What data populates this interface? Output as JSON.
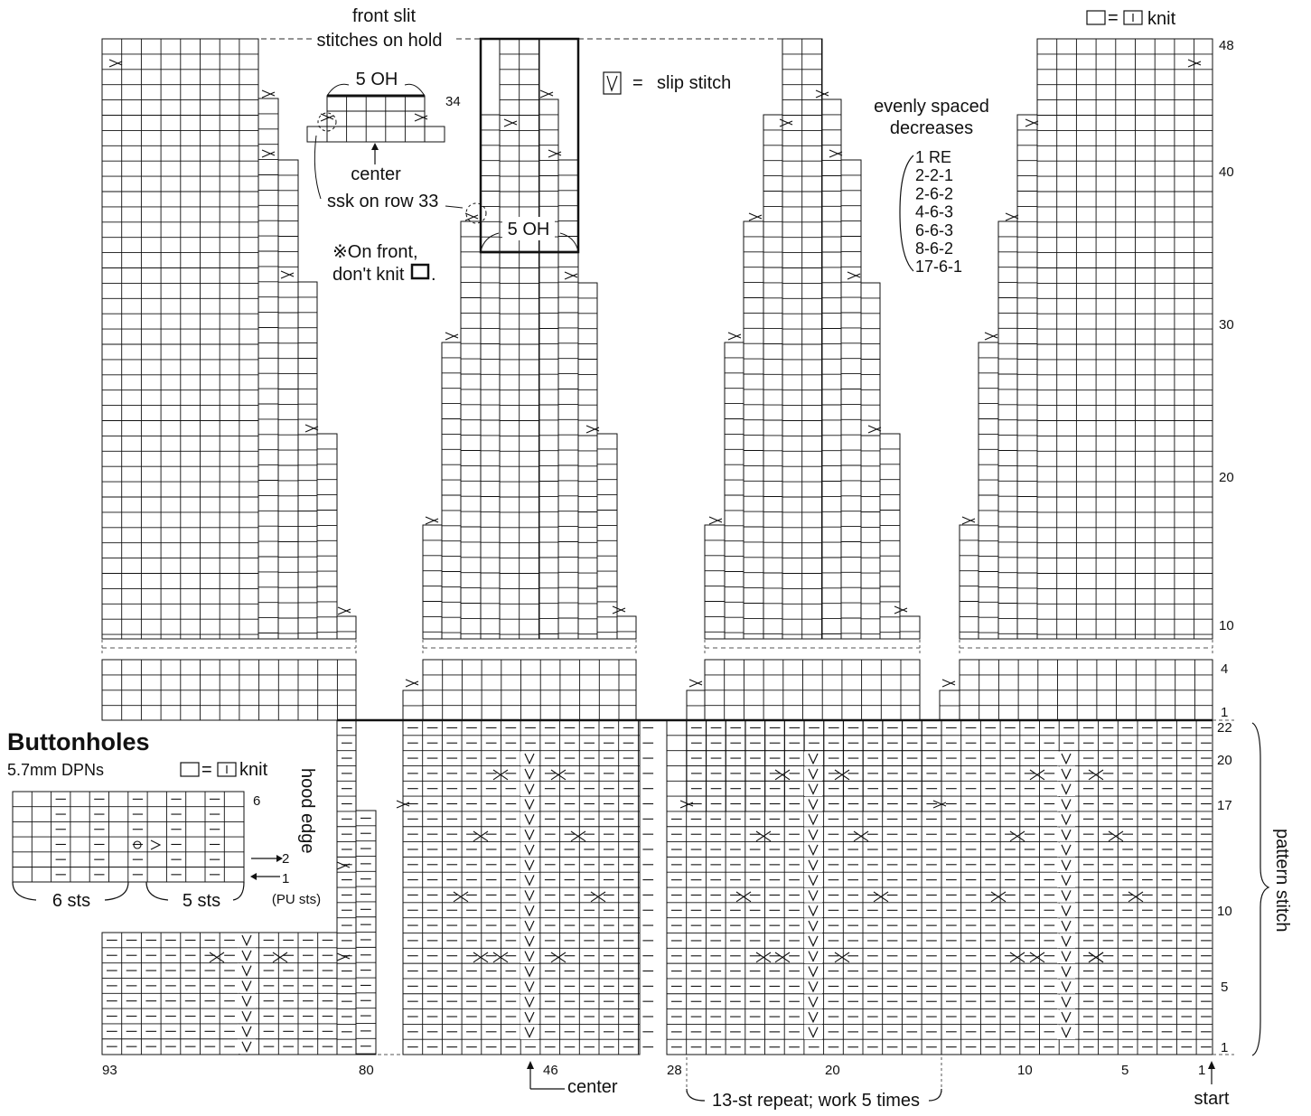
{
  "legend": {
    "knit_eq": "=",
    "knit": "knit",
    "slip_eq": "=",
    "slip": "slip stitch"
  },
  "front_slit": {
    "line1": "front slit",
    "line2": "stitches on hold"
  },
  "inset": {
    "label_oh": "5 OH",
    "row_number": "34",
    "center": "center",
    "ssk": "ssk on row 33",
    "note_line1": "※On front,",
    "note_line2": "don't knit"
  },
  "box_oh_label": "5 OH",
  "decreases": {
    "title_line1": "evenly spaced",
    "title_line2": "decreases",
    "items": [
      "1 RE",
      "2-2-1",
      "2-6-2",
      "4-6-3",
      "6-6-3",
      "8-6-2",
      "17-6-1"
    ]
  },
  "right_row_numbers_upper": [
    "48",
    "40",
    "30",
    "20",
    "10"
  ],
  "right_row_numbers_lower": [
    "4",
    "1"
  ],
  "right_row_numbers_pattern": [
    "22",
    "20",
    "17",
    "10",
    "5",
    "1"
  ],
  "pattern_stitch_label": "pattern stitch",
  "hood_edge_label": "hood edge",
  "buttonholes": {
    "title": "Buttonholes",
    "needles": "5.7mm DPNs",
    "legend_eq": "=",
    "legend_knit": "knit",
    "row_6": "6",
    "row_2": "2",
    "row_1": "1",
    "sts_6": "6 sts",
    "sts_5": "5 sts",
    "pu_sts": "(PU sts)"
  },
  "bottom_numbers": {
    "n93": "93",
    "n80": "80",
    "n46": "46",
    "center": "center",
    "n28": "28",
    "n20": "20",
    "n10": "10",
    "n5": "5",
    "n1": "1",
    "start": "start",
    "repeat": "13-st repeat; work 5 times"
  }
}
